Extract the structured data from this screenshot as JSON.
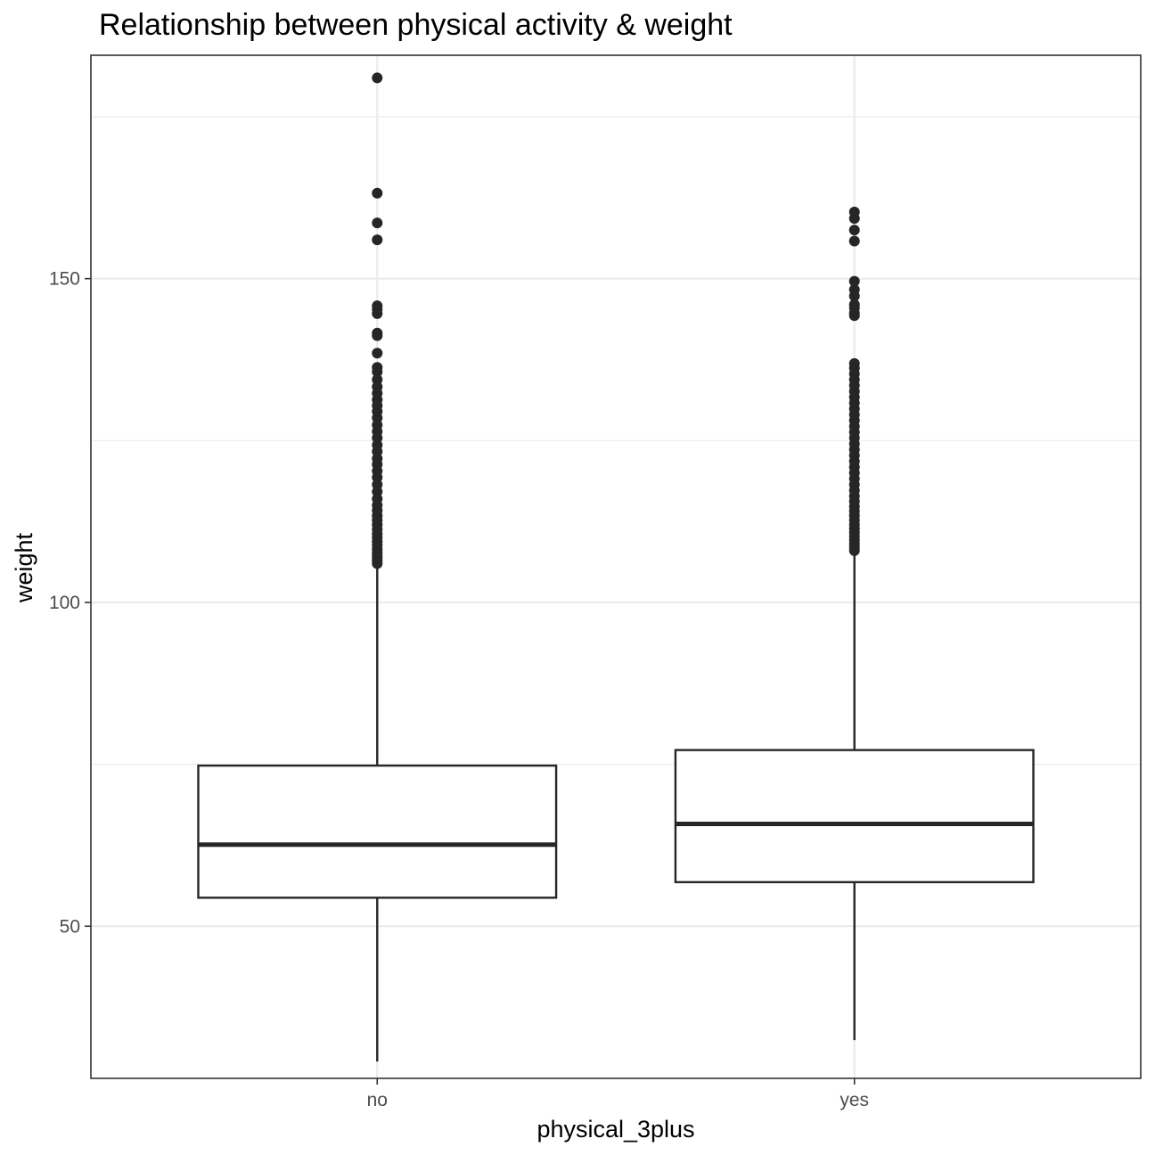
{
  "chart_data": {
    "type": "boxplot",
    "title": "Relationship between physical activity & weight",
    "xlabel": "physical_3plus",
    "ylabel": "weight",
    "categories": [
      "no",
      "yes"
    ],
    "ylim": [
      26.5,
      184.5
    ],
    "yticks": [
      50,
      100,
      150
    ],
    "grid": true,
    "legend": "none",
    "colors": {
      "box_stroke": "#262626",
      "grid": "#ebebeb",
      "panel_border": "#333333",
      "outlier": "#262626"
    },
    "boxes": [
      {
        "category": "no",
        "lower_whisker": 29.1,
        "q1": 54.4,
        "median": 62.6,
        "q3": 74.8,
        "upper_whisker": 105.5,
        "outliers": [
          106.0,
          106.4,
          106.8,
          107.2,
          107.7,
          108.2,
          108.8,
          109.4,
          110.0,
          110.6,
          111.3,
          112.0,
          112.7,
          113.4,
          114.2,
          115.0,
          116.0,
          117.1,
          118.2,
          119.3,
          120.3,
          121.3,
          122.2,
          123.3,
          124.3,
          125.4,
          126.4,
          127.4,
          128.5,
          129.5,
          130.4,
          131.3,
          132.3,
          133.3,
          134.4,
          135.6,
          136.3,
          138.5,
          141.2,
          141.6,
          144.6,
          145.3,
          145.8,
          156.0,
          158.6,
          163.2,
          181.0
        ]
      },
      {
        "category": "yes",
        "lower_whisker": 32.4,
        "q1": 56.8,
        "median": 65.8,
        "q3": 77.2,
        "upper_whisker": 107.4,
        "outliers": [
          108.0,
          108.5,
          109.0,
          109.6,
          110.2,
          110.8,
          111.4,
          112.0,
          112.7,
          113.4,
          114.1,
          114.8,
          115.6,
          116.4,
          117.3,
          118.2,
          119.1,
          120.0,
          120.9,
          121.8,
          122.7,
          123.6,
          124.5,
          125.4,
          126.3,
          127.2,
          128.1,
          129.0,
          129.9,
          130.8,
          131.7,
          132.6,
          133.5,
          134.4,
          135.3,
          136.2,
          136.9,
          144.3,
          144.7,
          145.5,
          146.0,
          147.3,
          148.3,
          149.6,
          155.8,
          157.5,
          159.3,
          160.3
        ]
      }
    ]
  }
}
